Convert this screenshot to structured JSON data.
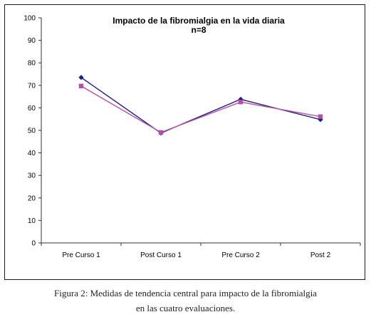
{
  "chart_data": {
    "type": "line",
    "title": "Impacto de la fibromialgia en la vida diaria",
    "subtitle": "n=8",
    "categories": [
      "Pre Curso 1",
      "Post Curso 1",
      "Pre Curso 2",
      "Post  2"
    ],
    "yticks": [
      "0",
      "10",
      "20",
      "30",
      "40",
      "50",
      "60",
      "70",
      "80",
      "90",
      "100"
    ],
    "ylim": [
      0,
      100
    ],
    "series": [
      {
        "values": [
          73.5,
          48.8,
          63.8,
          54.8
        ],
        "color": "#1f1f7a",
        "marker": "diamond"
      },
      {
        "values": [
          69.7,
          49.1,
          62.6,
          56.1
        ],
        "color": "#b44fa8",
        "marker": "square"
      }
    ]
  },
  "caption": {
    "label": "Figura 2:",
    "line1": " Medidas de tendencia central para impacto de la fibromialgia",
    "line2": "en las cuatro evaluaciones."
  }
}
